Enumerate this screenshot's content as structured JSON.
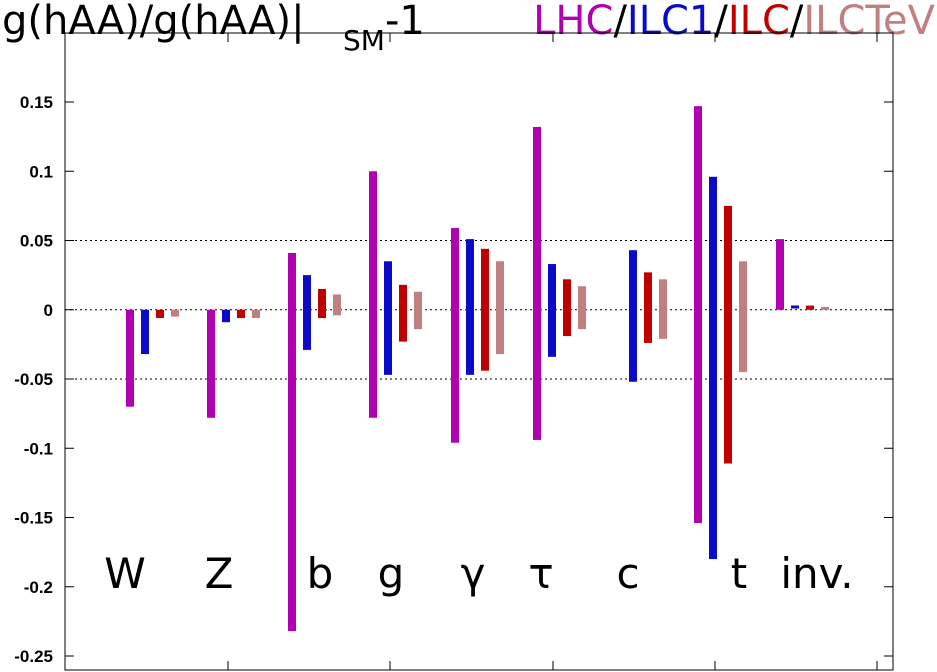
{
  "title": {
    "expr_main": "g(hAA)/g(hAA)|",
    "expr_sub": "SM",
    "expr_tail": "-1",
    "sep": "/"
  },
  "chart_data": {
    "type": "bar",
    "categories": [
      "W",
      "Z",
      "b",
      "g",
      "γ",
      "τ",
      "c",
      "t",
      "inv."
    ],
    "ylim": [
      -0.25,
      0.15
    ],
    "yticks": [
      -0.25,
      -0.2,
      -0.15,
      -0.1,
      -0.05,
      0,
      0.05,
      0.1,
      0.15
    ],
    "ytick_labels": [
      "-0.25",
      "-0.2",
      "-0.15",
      "-0.1",
      "-0.05",
      "0",
      "0.05",
      "0.1",
      "0.15"
    ],
    "grid": "dotted lines at -0.05, 0 and 0.05",
    "legend": "in title, top-right",
    "series": [
      {
        "name": "LHC",
        "color": "#b000b0",
        "values": [
          [
            -0.07,
            0
          ],
          [
            -0.078,
            0
          ],
          [
            -0.232,
            0.041
          ],
          [
            -0.078,
            0.1
          ],
          [
            -0.096,
            0.059
          ],
          [
            -0.094,
            0.132
          ],
          null,
          [
            -0.154,
            0.147
          ],
          [
            0,
            0.051
          ]
        ]
      },
      {
        "name": "ILC1",
        "color": "#0a0ac8",
        "values": [
          [
            -0.032,
            0
          ],
          [
            -0.009,
            0
          ],
          [
            -0.029,
            0.025
          ],
          [
            -0.047,
            0.035
          ],
          [
            -0.047,
            0.051
          ],
          [
            -0.034,
            0.033
          ],
          [
            -0.052,
            0.043
          ],
          [
            -0.18,
            0.096
          ],
          [
            0,
            0.002
          ]
        ]
      },
      {
        "name": "ILC",
        "color": "#c00000",
        "values": [
          [
            -0.006,
            0
          ],
          [
            -0.006,
            0
          ],
          [
            -0.006,
            0.015
          ],
          [
            -0.023,
            0.018
          ],
          [
            -0.044,
            0.044
          ],
          [
            -0.019,
            0.022
          ],
          [
            -0.024,
            0.027
          ],
          [
            -0.111,
            0.075
          ],
          [
            0,
            0.003
          ]
        ]
      },
      {
        "name": "ILCTeV",
        "color": "#c08080",
        "values": [
          [
            -0.005,
            0
          ],
          [
            -0.006,
            0
          ],
          [
            -0.004,
            0.011
          ],
          [
            -0.014,
            0.013
          ],
          [
            -0.032,
            0.035
          ],
          [
            -0.014,
            0.017
          ],
          [
            -0.021,
            0.022
          ],
          [
            -0.045,
            0.035
          ],
          [
            0,
            0.001
          ]
        ]
      }
    ]
  }
}
